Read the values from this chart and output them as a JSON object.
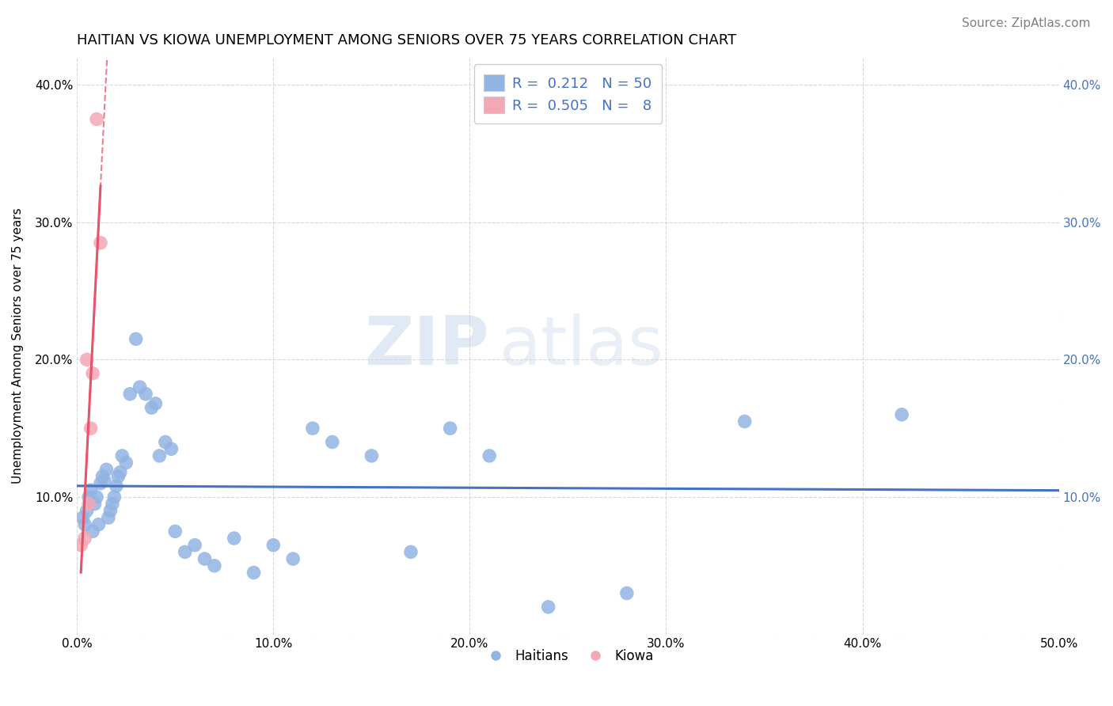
{
  "title": "HAITIAN VS KIOWA UNEMPLOYMENT AMONG SENIORS OVER 75 YEARS CORRELATION CHART",
  "source": "Source: ZipAtlas.com",
  "ylabel": "Unemployment Among Seniors over 75 years",
  "xlim": [
    0.0,
    0.5
  ],
  "ylim": [
    0.0,
    0.42
  ],
  "xticks": [
    0.0,
    0.1,
    0.2,
    0.3,
    0.4,
    0.5
  ],
  "yticks": [
    0.0,
    0.1,
    0.2,
    0.3,
    0.4
  ],
  "xticklabels": [
    "0.0%",
    "10.0%",
    "20.0%",
    "30.0%",
    "40.0%",
    "50.0%"
  ],
  "yticklabels_left": [
    "",
    "10.0%",
    "20.0%",
    "30.0%",
    "40.0%"
  ],
  "yticklabels_right": [
    "",
    "10.0%",
    "20.0%",
    "30.0%",
    "40.0%"
  ],
  "haitian_x": [
    0.003,
    0.004,
    0.005,
    0.006,
    0.007,
    0.008,
    0.009,
    0.01,
    0.011,
    0.012,
    0.013,
    0.014,
    0.015,
    0.016,
    0.017,
    0.018,
    0.019,
    0.02,
    0.021,
    0.022,
    0.023,
    0.025,
    0.027,
    0.03,
    0.032,
    0.035,
    0.038,
    0.04,
    0.042,
    0.045,
    0.048,
    0.05,
    0.055,
    0.06,
    0.065,
    0.07,
    0.08,
    0.09,
    0.1,
    0.11,
    0.12,
    0.13,
    0.15,
    0.17,
    0.19,
    0.21,
    0.24,
    0.28,
    0.34,
    0.42
  ],
  "haitian_y": [
    0.085,
    0.08,
    0.09,
    0.1,
    0.105,
    0.075,
    0.095,
    0.1,
    0.08,
    0.11,
    0.115,
    0.112,
    0.12,
    0.085,
    0.09,
    0.095,
    0.1,
    0.108,
    0.115,
    0.118,
    0.13,
    0.125,
    0.175,
    0.215,
    0.18,
    0.175,
    0.165,
    0.168,
    0.13,
    0.14,
    0.135,
    0.075,
    0.06,
    0.065,
    0.055,
    0.05,
    0.07,
    0.045,
    0.065,
    0.055,
    0.15,
    0.14,
    0.13,
    0.06,
    0.15,
    0.13,
    0.02,
    0.03,
    0.155,
    0.16
  ],
  "kiowa_x": [
    0.002,
    0.004,
    0.005,
    0.006,
    0.007,
    0.008,
    0.01,
    0.012
  ],
  "kiowa_y": [
    0.065,
    0.07,
    0.2,
    0.095,
    0.15,
    0.19,
    0.375,
    0.285
  ],
  "haitian_color": "#92b4e3",
  "kiowa_color": "#f4a7b4",
  "haitian_line_color": "#4472c4",
  "kiowa_line_color": "#e8536a",
  "R_haitian": 0.212,
  "N_haitian": 50,
  "R_kiowa": 0.505,
  "N_kiowa": 8,
  "watermark_zip": "ZIP",
  "watermark_atlas": "atlas",
  "background_color": "#ffffff",
  "grid_color": "#d4d4d4",
  "title_fontsize": 13,
  "tick_fontsize": 11,
  "legend_fontsize": 13,
  "source_fontsize": 11
}
